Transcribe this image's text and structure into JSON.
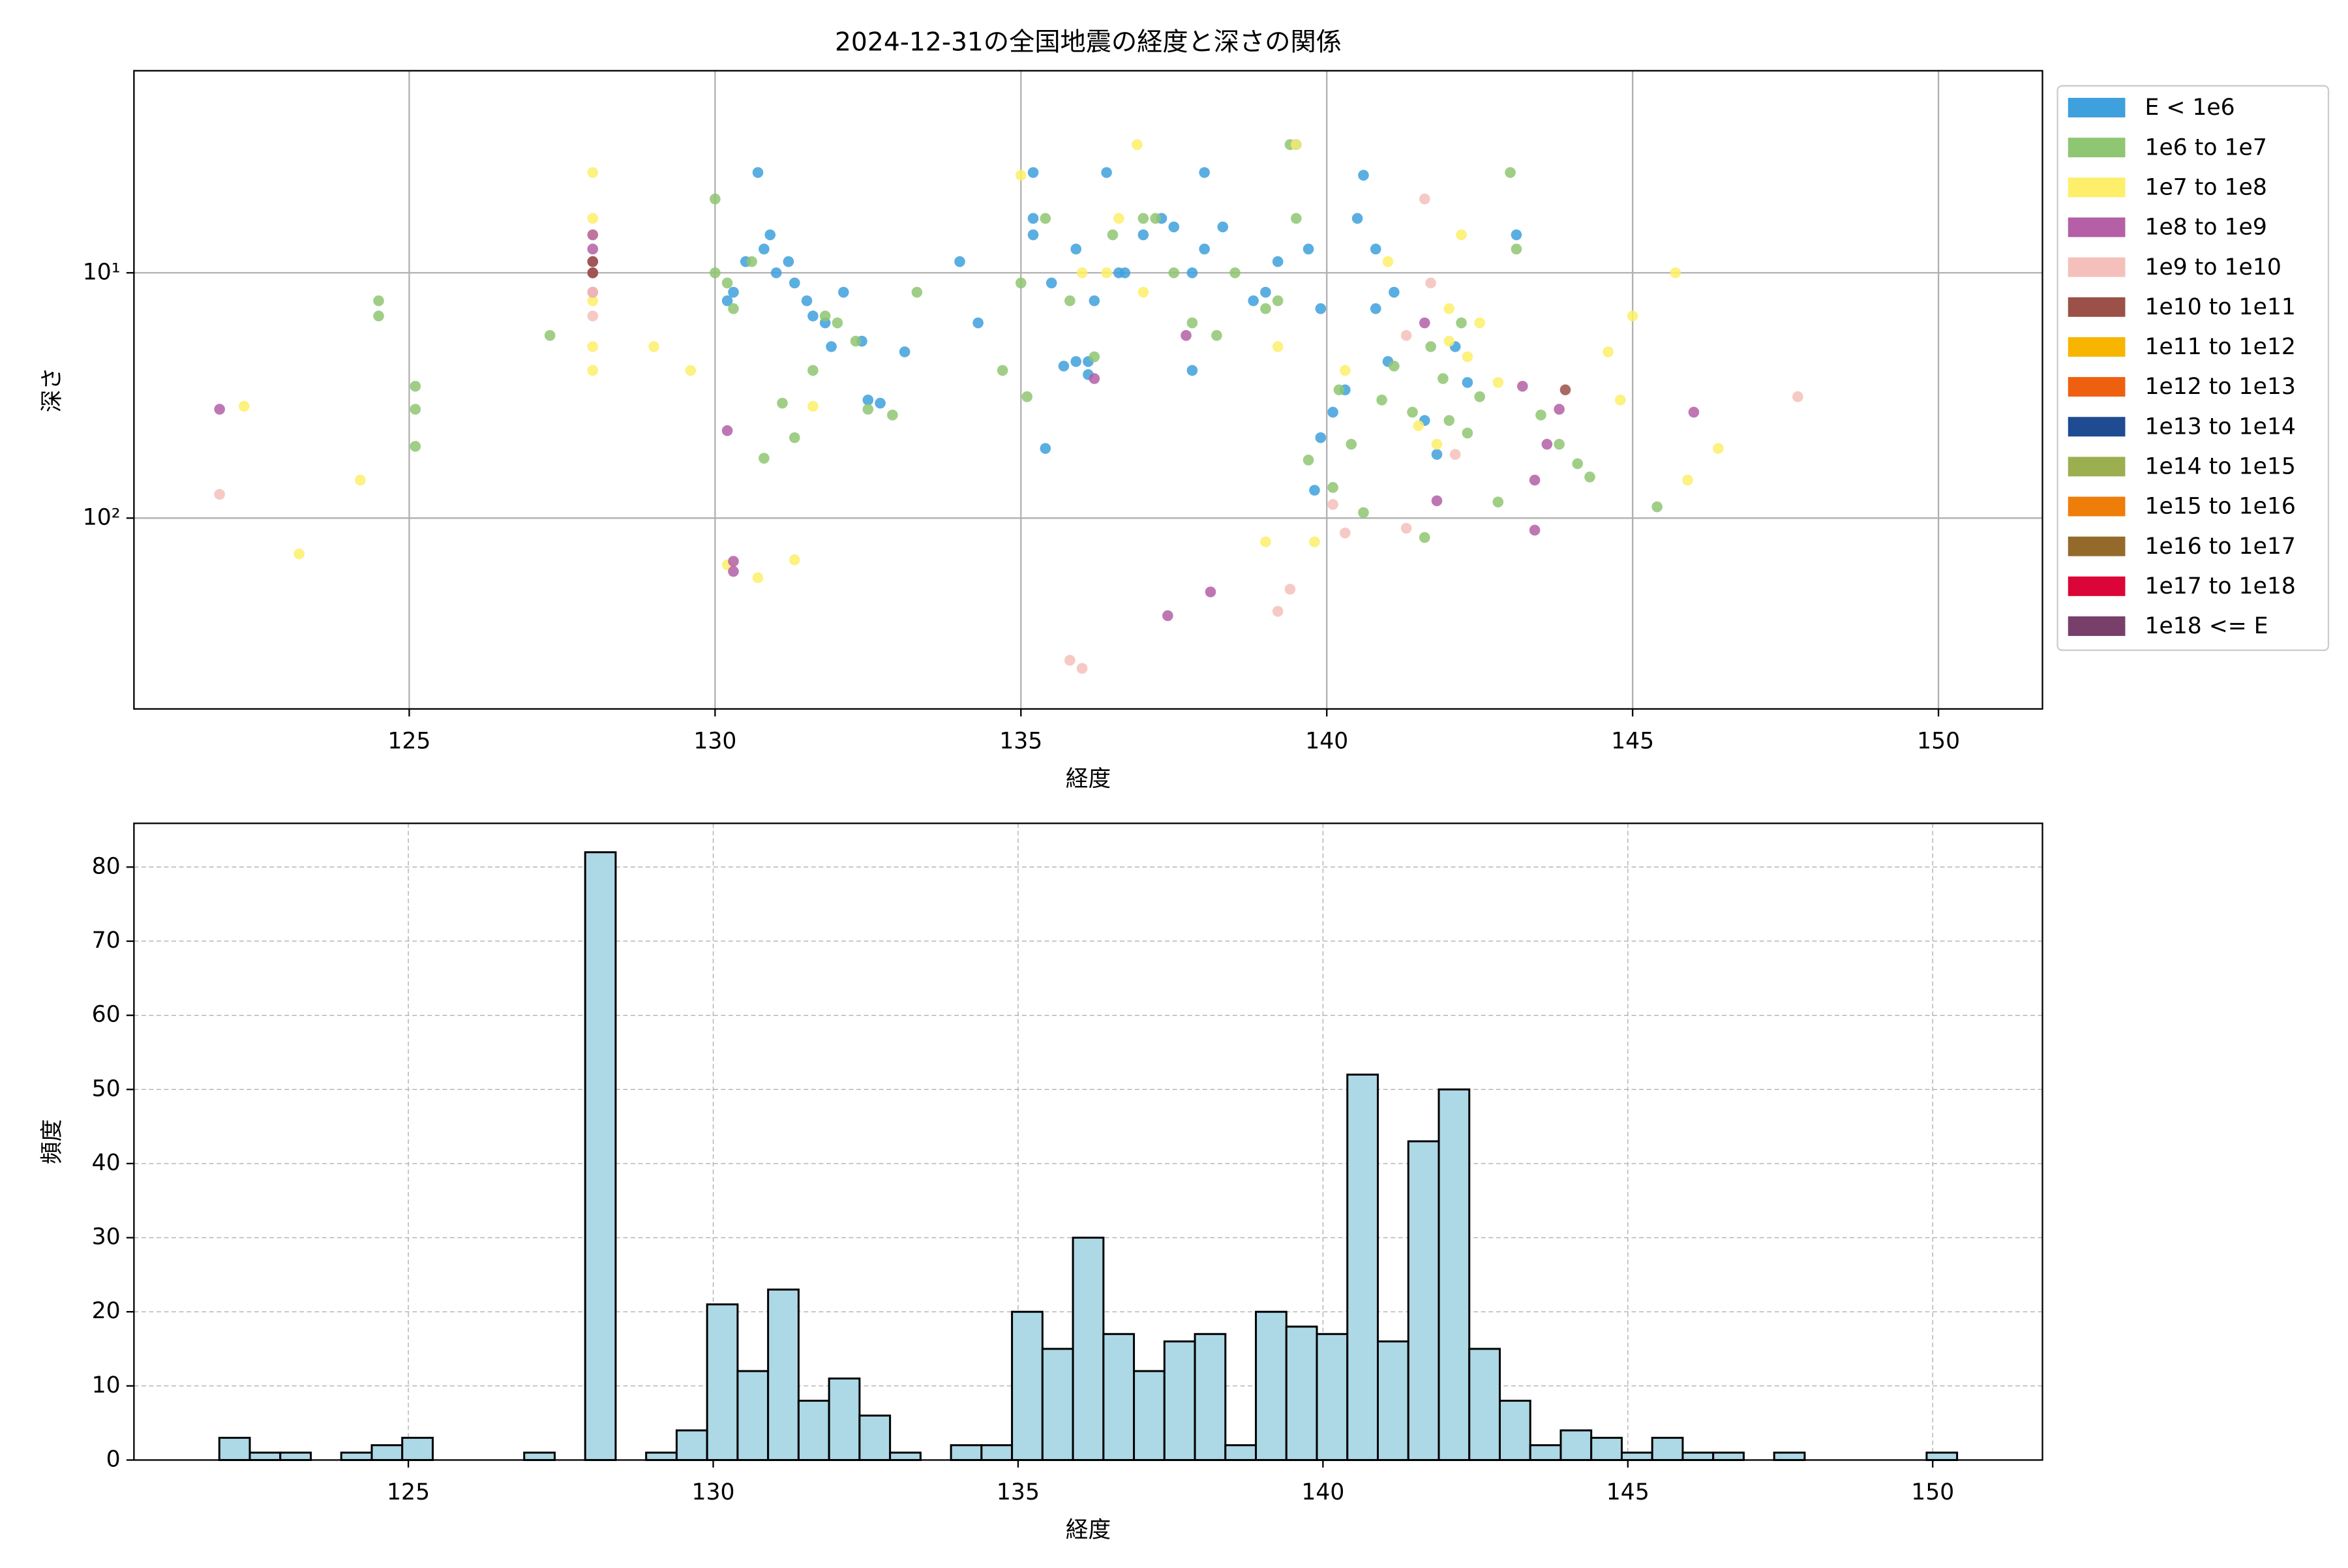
{
  "chart_data": [
    {
      "type": "scatter",
      "title": "2024-12-31の全国地震の経度と深さの関係",
      "xlabel": "経度",
      "ylabel": "深さ",
      "xlim": [
        120.5,
        151.7
      ],
      "ylim": [
        1.5,
        600
      ],
      "yscale": "log",
      "invert_y": true,
      "xticks": [
        125,
        130,
        135,
        140,
        145,
        150
      ],
      "yticks": [
        {
          "value": 10,
          "label": "10¹"
        },
        {
          "value": 100,
          "label": "10²"
        }
      ],
      "grid": true,
      "legend": "outside right",
      "series": [
        {
          "name": "E < 1e6",
          "color": "#3ea0dc",
          "x": [
            130.7,
            130.3,
            130.5,
            130.8,
            131.0,
            131.3,
            131.5,
            131.6,
            131.8,
            132.1,
            132.4,
            132.7,
            133.1,
            132.5,
            131.9,
            130.2,
            130.9,
            131.2,
            134.3,
            134.0,
            135.2,
            135.2,
            135.2,
            135.5,
            135.9,
            136.2,
            136.4,
            136.1,
            136.7,
            137.0,
            137.3,
            137.5,
            137.8,
            137.8,
            138.0,
            138.0,
            138.3,
            138.8,
            139.0,
            139.2,
            139.5,
            139.7,
            139.9,
            139.9,
            140.1,
            140.3,
            140.5,
            140.6,
            140.8,
            140.8,
            141.1,
            141.6,
            141.8,
            142.1,
            142.3,
            143.1,
            135.7,
            135.4,
            136.1,
            135.9,
            136.6,
            139.8,
            141.0
          ],
          "y": [
            3.9,
            12,
            9,
            8,
            10,
            11,
            13,
            15,
            16,
            12,
            19,
            34,
            21,
            33,
            20,
            13,
            7,
            9,
            16,
            9,
            3.9,
            6,
            7,
            11,
            23,
            13,
            3.9,
            23,
            10,
            7,
            6,
            6.5,
            25,
            10,
            3.9,
            8,
            6.5,
            13,
            12,
            9,
            3.0,
            8,
            14,
            47,
            37,
            30,
            6,
            4,
            8,
            14,
            12,
            40,
            55,
            20,
            28,
            7,
            24,
            52,
            26,
            8,
            10,
            77,
            23
          ]
        },
        {
          "name": "1e6 to 1e7",
          "color": "#8fc672",
          "x": [
            124.5,
            124.5,
            125.1,
            125.1,
            125.1,
            127.3,
            130.0,
            130.0,
            130.2,
            130.3,
            130.6,
            130.8,
            131.1,
            131.3,
            131.6,
            131.8,
            132.0,
            132.3,
            132.5,
            132.9,
            133.3,
            134.7,
            135.0,
            135.1,
            135.4,
            135.8,
            136.2,
            136.5,
            137.0,
            137.2,
            137.5,
            137.8,
            138.2,
            138.5,
            139.0,
            139.2,
            139.4,
            139.5,
            139.7,
            140.2,
            140.4,
            140.6,
            140.9,
            141.1,
            141.4,
            141.7,
            141.9,
            142.0,
            142.3,
            142.5,
            142.8,
            143.0,
            143.1,
            143.5,
            143.8,
            144.1,
            144.3,
            145.4,
            141.6,
            140.1,
            142.2
          ],
          "y": [
            13,
            15,
            29,
            36,
            51,
            18,
            5,
            10,
            11,
            14,
            9,
            57,
            34,
            47,
            25,
            15,
            16,
            19,
            36,
            38,
            12,
            25,
            11,
            32,
            6,
            13,
            22,
            7,
            6,
            6,
            10,
            16,
            18,
            10,
            14,
            13,
            3.0,
            6,
            58,
            30,
            50,
            95,
            33,
            24,
            37,
            20,
            27,
            40,
            45,
            32,
            86,
            3.9,
            8,
            38,
            50,
            60,
            68,
            90,
            120,
            75,
            16
          ]
        },
        {
          "name": "1e7 to 1e8",
          "color": "#fdef6a",
          "x": [
            128.0,
            128.0,
            128.0,
            128.0,
            128.0,
            128.0,
            128.0,
            122.3,
            123.2,
            124.2,
            129.0,
            129.6,
            130.2,
            130.7,
            131.3,
            131.6,
            135.0,
            136.0,
            136.4,
            136.6,
            136.9,
            137.0,
            139.0,
            139.2,
            139.5,
            139.8,
            140.3,
            141.0,
            141.5,
            142.0,
            142.3,
            142.5,
            142.0,
            141.8,
            142.8,
            144.6,
            144.8,
            145.0,
            145.7,
            145.9,
            146.4,
            142.2
          ],
          "y": [
            3.9,
            6,
            7,
            10,
            13,
            20,
            25,
            35,
            140,
            70,
            20,
            25,
            155,
            175,
            148,
            35,
            4,
            10,
            10,
            6,
            3.0,
            12,
            125,
            20,
            3.0,
            125,
            25,
            9,
            42,
            14,
            22,
            16,
            19,
            50,
            28,
            21,
            33,
            15,
            10,
            70,
            52,
            7
          ]
        },
        {
          "name": "1e8 to 1e9",
          "color": "#b45fa6",
          "x": [
            121.9,
            128.0,
            128.0,
            128.0,
            128.0,
            128.0,
            130.2,
            130.3,
            130.3,
            136.2,
            137.4,
            138.1,
            137.7,
            141.6,
            141.8,
            143.2,
            143.4,
            143.4,
            143.6,
            143.8,
            146.0
          ],
          "y": [
            36,
            7,
            8,
            9,
            10,
            12,
            44,
            150,
            165,
            27,
            250,
            200,
            18,
            16,
            85,
            29,
            70,
            112,
            50,
            36,
            37
          ]
        },
        {
          "name": "1e9 to 1e10",
          "color": "#f5c0bb",
          "x": [
            121.9,
            128.0,
            128.0,
            141.6,
            141.7,
            141.3,
            140.3,
            141.3,
            139.4,
            139.2,
            135.8,
            136.0,
            142.1,
            147.7,
            140.1
          ],
          "y": [
            80,
            12,
            15,
            5,
            11,
            18,
            115,
            110,
            195,
            240,
            380,
            410,
            55,
            32,
            88
          ]
        },
        {
          "name": "1e10 to 1e11",
          "color": "#9b5048",
          "x": [
            128.0,
            128.0,
            143.9
          ],
          "y": [
            9,
            10,
            30
          ]
        },
        {
          "name": "1e11 to 1e12",
          "color": "#f7b500",
          "x": [],
          "y": []
        },
        {
          "name": "1e12 to 1e13",
          "color": "#ee6010",
          "x": [],
          "y": []
        },
        {
          "name": "1e13 to 1e14",
          "color": "#1e4b91",
          "x": [],
          "y": []
        },
        {
          "name": "1e14 to 1e15",
          "color": "#9caf50",
          "x": [],
          "y": []
        },
        {
          "name": "1e15 to 1e16",
          "color": "#ef7d0a",
          "x": [],
          "y": []
        },
        {
          "name": "1e16 to 1e17",
          "color": "#946a2a",
          "x": [],
          "y": []
        },
        {
          "name": "1e17 to 1e18",
          "color": "#dc0537",
          "x": [],
          "y": []
        },
        {
          "name": "1e18 <= E",
          "color": "#793f6b",
          "x": [],
          "y": []
        }
      ]
    },
    {
      "type": "histogram",
      "xlabel": "経度",
      "ylabel": "頻度",
      "xlim": [
        120.5,
        151.8
      ],
      "ylim": [
        0,
        85.9
      ],
      "xticks": [
        125,
        130,
        135,
        140,
        145,
        150
      ],
      "yticks": [
        0,
        10,
        20,
        30,
        40,
        50,
        60,
        70,
        80
      ],
      "grid": "dashed",
      "color": "#add8e6",
      "edgecolor": "#000000",
      "bins": [
        121.9,
        122.4,
        122.9,
        123.4,
        123.9,
        124.4,
        124.9,
        125.4,
        125.9,
        126.4,
        126.9,
        127.4,
        127.9,
        128.4,
        128.9,
        129.4,
        129.9,
        130.4,
        130.9,
        131.4,
        131.9,
        132.4,
        132.9,
        133.4,
        133.9,
        134.4,
        134.9,
        135.4,
        135.9,
        136.4,
        136.9,
        137.4,
        137.9,
        138.4,
        138.9,
        139.4,
        139.9,
        140.4,
        140.9,
        141.4,
        141.9,
        142.4,
        142.9,
        143.4,
        143.9,
        144.4,
        144.9,
        145.4,
        145.9,
        146.4,
        146.9,
        147.4,
        147.9,
        148.4,
        148.9,
        149.4,
        149.9,
        150.4
      ],
      "values": [
        3,
        1,
        1,
        0,
        1,
        2,
        3,
        0,
        0,
        0,
        1,
        0,
        82,
        0,
        1,
        4,
        21,
        12,
        23,
        8,
        11,
        6,
        1,
        0,
        2,
        2,
        20,
        15,
        30,
        17,
        12,
        16,
        17,
        2,
        20,
        18,
        17,
        52,
        16,
        43,
        50,
        15,
        8,
        2,
        4,
        3,
        1,
        3,
        1,
        1,
        0,
        1,
        0,
        0,
        0,
        0,
        1
      ]
    }
  ]
}
